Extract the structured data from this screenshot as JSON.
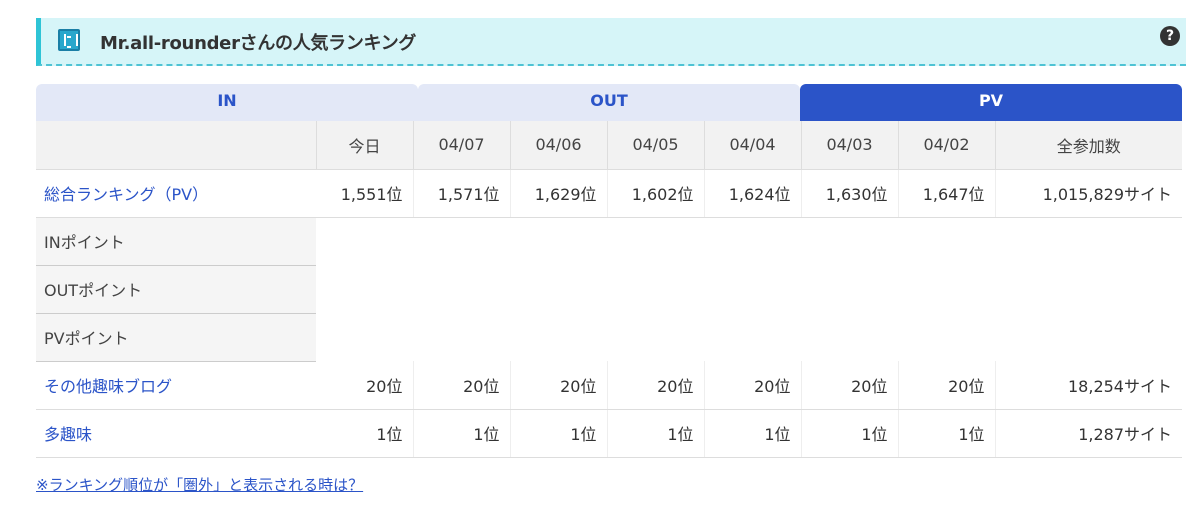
{
  "header": {
    "title": "Mr.all-rounderさんの人気ランキング",
    "icon": "book-icon",
    "help_icon": "question-circle-icon",
    "help_glyph": "?"
  },
  "tabs": [
    {
      "label": "IN",
      "active": false
    },
    {
      "label": "OUT",
      "active": false
    },
    {
      "label": "PV",
      "active": true
    }
  ],
  "table": {
    "columns": [
      "今日",
      "04/07",
      "04/06",
      "04/05",
      "04/04",
      "04/03",
      "04/02",
      "全参加数"
    ],
    "rows": [
      {
        "label": "総合ランキング（PV）",
        "link": true,
        "values": [
          "1,551位",
          "1,571位",
          "1,629位",
          "1,602位",
          "1,624位",
          "1,630位",
          "1,647位",
          "1,015,829サイト"
        ]
      },
      {
        "label": "INポイント",
        "link": false,
        "values": []
      },
      {
        "label": "OUTポイント",
        "link": false,
        "values": []
      },
      {
        "label": "PVポイント",
        "link": false,
        "values": []
      },
      {
        "label": "その他趣味ブログ",
        "link": true,
        "values": [
          "20位",
          "20位",
          "20位",
          "20位",
          "20位",
          "20位",
          "20位",
          "18,254サイト"
        ]
      },
      {
        "label": "多趣味",
        "link": true,
        "values": [
          "1位",
          "1位",
          "1位",
          "1位",
          "1位",
          "1位",
          "1位",
          "1,287サイト"
        ]
      }
    ]
  },
  "note": "※ランキング順位が「圏外」と表示される時は？",
  "colors": {
    "accent": "#2b54c8",
    "header_bg": "#d6f5f8",
    "header_border": "#2ec4d6"
  }
}
